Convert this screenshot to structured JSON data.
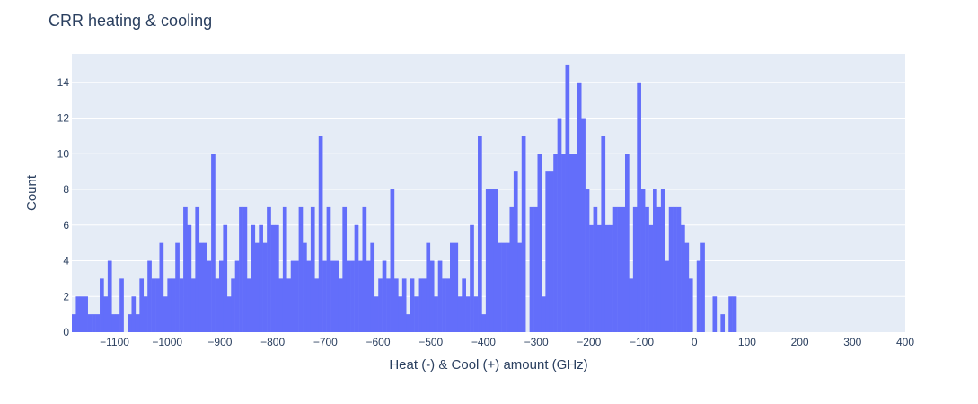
{
  "chart_data": {
    "type": "bar",
    "title": "CRR heating & cooling",
    "xlabel": "Heat (-) & Cool (+) amount (GHz)",
    "ylabel": "Count",
    "xlim": [
      -1181,
      400
    ],
    "ylim": [
      0,
      15.6
    ],
    "x_ticks": [
      -1100,
      -1000,
      -900,
      -800,
      -700,
      -600,
      -500,
      -400,
      -300,
      -200,
      -100,
      0,
      100,
      200,
      300,
      400
    ],
    "x_tick_labels": [
      "−1100",
      "−1000",
      "−900",
      "−800",
      "−700",
      "−600",
      "−500",
      "−400",
      "−300",
      "−200",
      "−100",
      "0",
      "100",
      "200",
      "300",
      "400"
    ],
    "y_ticks": [
      0,
      2,
      4,
      6,
      8,
      10,
      12,
      14
    ],
    "y_tick_labels": [
      "0",
      "2",
      "4",
      "6",
      "8",
      "10",
      "12",
      "14"
    ],
    "grid": true,
    "colors": {
      "bar": "#636efa",
      "plot_bg": "#e5ecf6",
      "grid": "#ffffff",
      "text": "#2a3f5f"
    },
    "bins": {
      "start": -1181,
      "width": 7.55
    },
    "values": [
      1,
      2,
      2,
      2,
      1,
      1,
      1,
      3,
      2,
      4,
      1,
      1,
      3,
      0,
      1,
      2,
      1,
      3,
      2,
      4,
      3,
      3,
      5,
      2,
      3,
      3,
      5,
      3,
      7,
      6,
      3,
      7,
      5,
      5,
      4,
      10,
      3,
      4,
      6,
      2,
      3,
      4,
      7,
      7,
      3,
      6,
      5,
      6,
      5,
      7,
      6,
      6,
      3,
      7,
      3,
      4,
      4,
      7,
      5,
      4,
      7,
      3,
      11,
      4,
      7,
      4,
      4,
      3,
      7,
      4,
      4,
      6,
      4,
      7,
      4,
      5,
      2,
      3,
      4,
      3,
      8,
      3,
      2,
      3,
      1,
      3,
      2,
      3,
      3,
      5,
      4,
      2,
      4,
      3,
      3,
      5,
      5,
      2,
      3,
      2,
      6,
      2,
      11,
      1,
      8,
      8,
      8,
      5,
      5,
      5,
      7,
      9,
      5,
      11,
      0,
      7,
      7,
      10,
      2,
      9,
      9,
      10,
      12,
      10,
      15,
      10,
      10,
      14,
      12,
      8,
      6,
      7,
      6,
      11,
      6,
      6,
      7,
      7,
      7,
      10,
      3,
      7,
      14,
      8,
      7,
      6,
      8,
      7,
      8,
      4,
      7,
      7,
      7,
      6,
      5,
      3,
      0,
      4,
      5,
      0,
      0,
      2,
      0,
      1,
      0,
      2,
      2
    ]
  }
}
